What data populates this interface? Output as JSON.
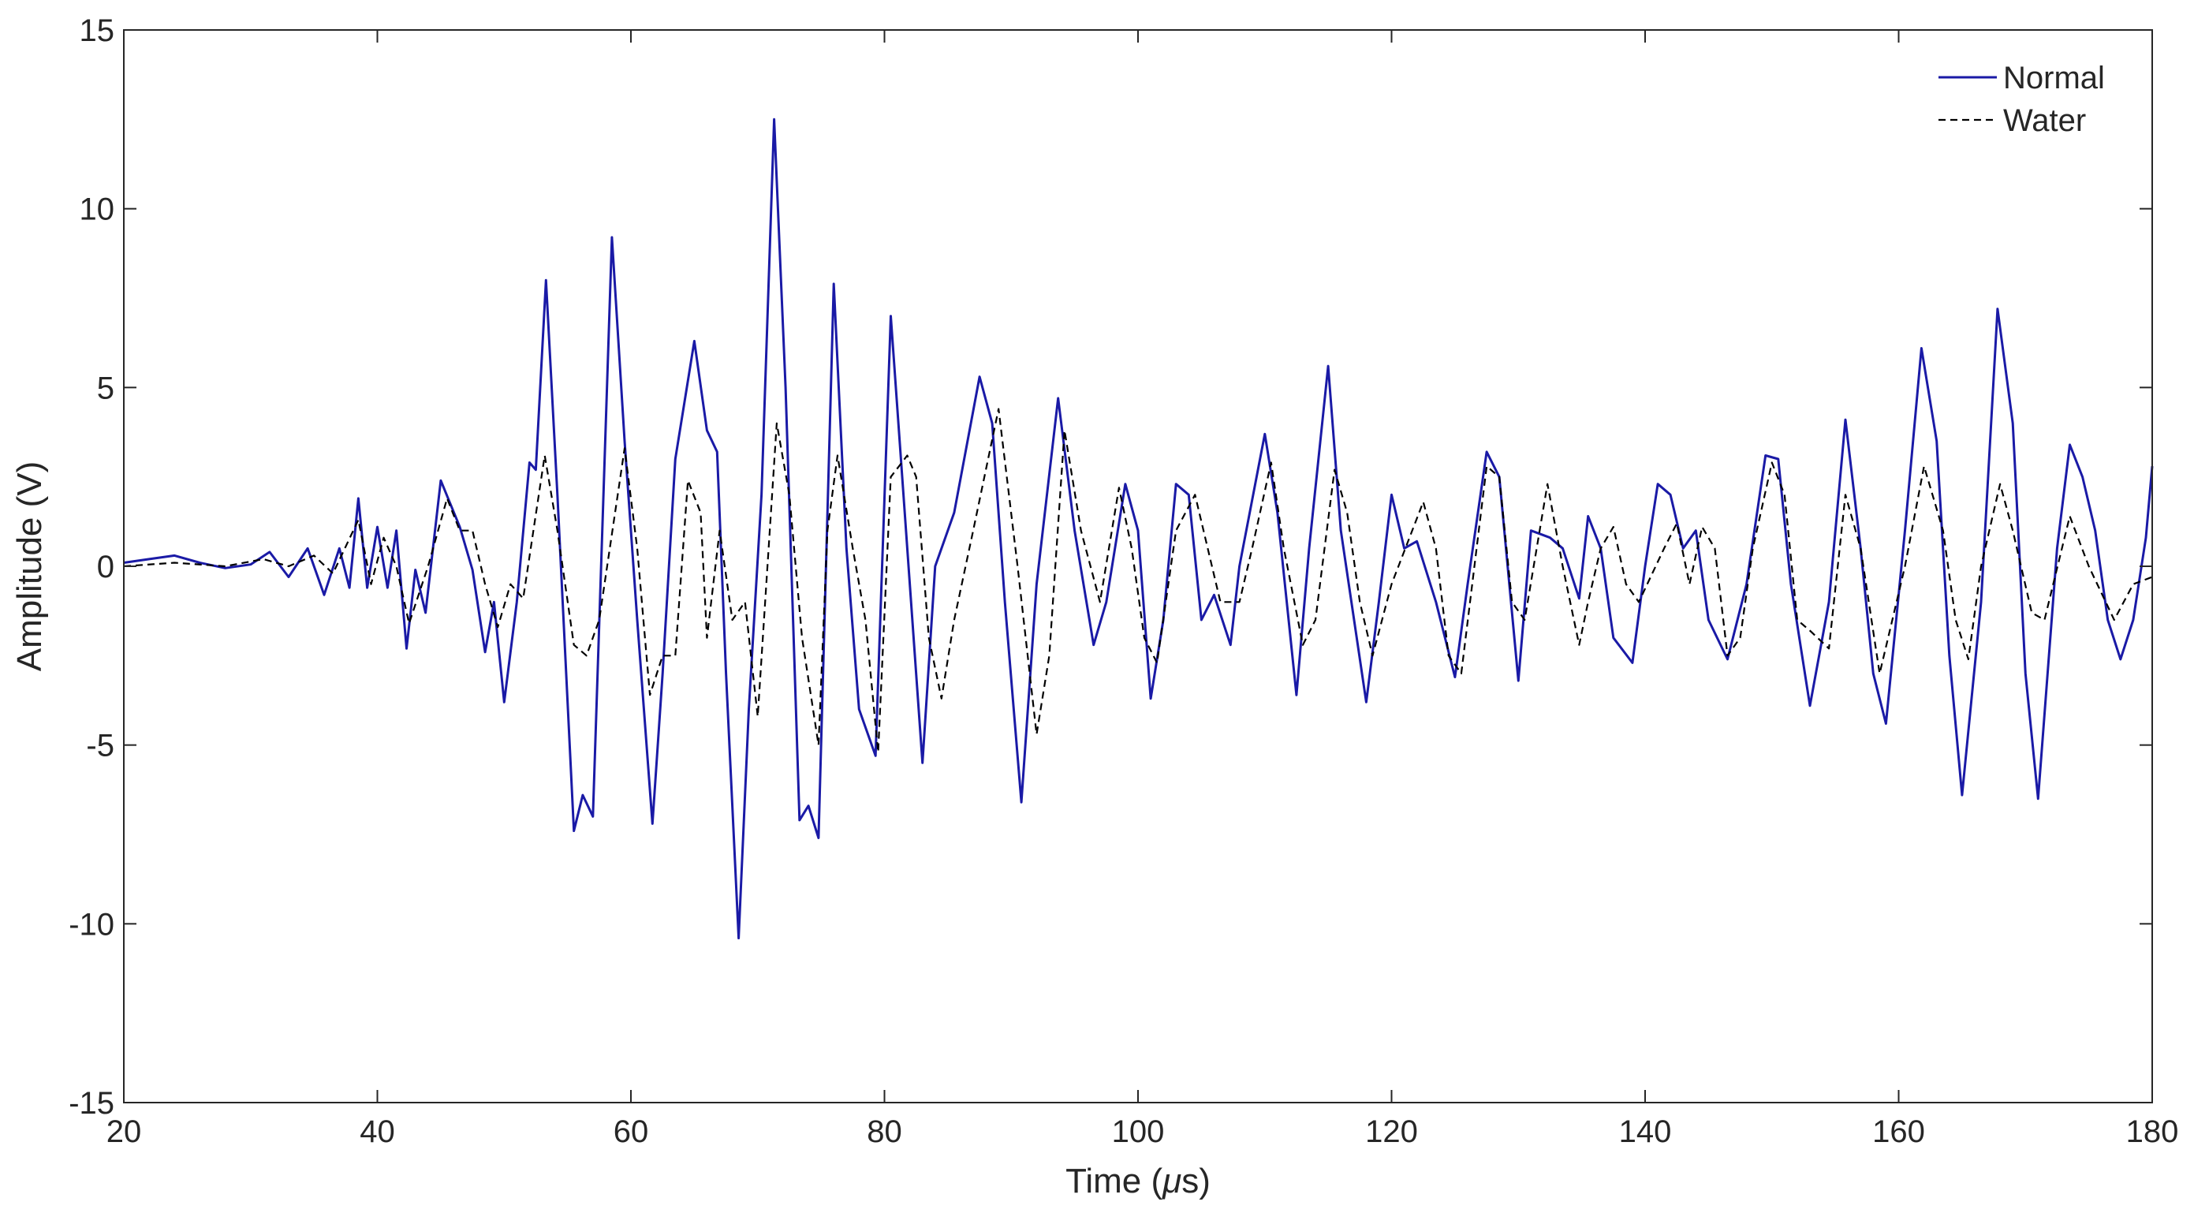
{
  "chart_data": {
    "type": "line",
    "title": "",
    "xlabel_prefix": "Time (",
    "xlabel_mu": "μ",
    "xlabel_suffix": "s)",
    "ylabel": "Amplitude (V)",
    "xlim": [
      20,
      180
    ],
    "ylim": [
      -15,
      15
    ],
    "xticks": [
      20,
      40,
      60,
      80,
      100,
      120,
      140,
      160,
      180
    ],
    "yticks": [
      15,
      10,
      5,
      0,
      -5,
      -10,
      -15
    ],
    "grid": false,
    "legend_position": "top-right",
    "series": [
      {
        "name": "Normal",
        "color": "#1a1aa6",
        "style": "solid",
        "points": [
          [
            20,
            0.1
          ],
          [
            22,
            0.2
          ],
          [
            24,
            0.3
          ],
          [
            26,
            0.1
          ],
          [
            28,
            -0.05
          ],
          [
            30,
            0.05
          ],
          [
            31.5,
            0.4
          ],
          [
            33,
            -0.3
          ],
          [
            34.5,
            0.5
          ],
          [
            35.8,
            -0.8
          ],
          [
            37,
            0.5
          ],
          [
            37.8,
            -0.6
          ],
          [
            38.5,
            1.9
          ],
          [
            39.2,
            -0.6
          ],
          [
            40,
            1.1
          ],
          [
            40.8,
            -0.6
          ],
          [
            41.5,
            1.0
          ],
          [
            42.3,
            -2.3
          ],
          [
            43,
            -0.1
          ],
          [
            43.8,
            -1.3
          ],
          [
            45,
            2.4
          ],
          [
            46.5,
            1.1
          ],
          [
            47.5,
            -0.1
          ],
          [
            48.5,
            -2.4
          ],
          [
            49.2,
            -1.0
          ],
          [
            50,
            -3.8
          ],
          [
            51,
            -1.0
          ],
          [
            52,
            2.9
          ],
          [
            52.5,
            2.7
          ],
          [
            53.3,
            8.0
          ],
          [
            54.2,
            2.0
          ],
          [
            55.5,
            -7.4
          ],
          [
            56.2,
            -6.4
          ],
          [
            57,
            -7.0
          ],
          [
            58.5,
            9.2
          ],
          [
            59.5,
            3.5
          ],
          [
            60.5,
            -1.5
          ],
          [
            61.7,
            -7.2
          ],
          [
            62.5,
            -3.0
          ],
          [
            63.5,
            3.0
          ],
          [
            65,
            6.3
          ],
          [
            66,
            3.8
          ],
          [
            66.8,
            3.2
          ],
          [
            67.5,
            -3.0
          ],
          [
            68.5,
            -10.4
          ],
          [
            69.3,
            -4.0
          ],
          [
            70.3,
            2.0
          ],
          [
            71.3,
            12.5
          ],
          [
            72.2,
            5.0
          ],
          [
            73.3,
            -7.1
          ],
          [
            74,
            -6.7
          ],
          [
            74.8,
            -7.6
          ],
          [
            76,
            7.9
          ],
          [
            77,
            0.5
          ],
          [
            78,
            -4.0
          ],
          [
            79.3,
            -5.3
          ],
          [
            80.5,
            7.0
          ],
          [
            81.5,
            2.0
          ],
          [
            83,
            -5.5
          ],
          [
            84,
            0.0
          ],
          [
            85.5,
            1.5
          ],
          [
            87.5,
            5.3
          ],
          [
            88.5,
            4.0
          ],
          [
            89.5,
            -1.0
          ],
          [
            90.8,
            -6.6
          ],
          [
            92,
            -0.5
          ],
          [
            93.7,
            4.7
          ],
          [
            95,
            1.0
          ],
          [
            96.5,
            -2.2
          ],
          [
            97.5,
            -1.0
          ],
          [
            99,
            2.3
          ],
          [
            100,
            1.0
          ],
          [
            101,
            -3.7
          ],
          [
            102,
            -1.5
          ],
          [
            103,
            2.3
          ],
          [
            104,
            2.0
          ],
          [
            105,
            -1.5
          ],
          [
            106,
            -0.8
          ],
          [
            107.3,
            -2.2
          ],
          [
            108,
            0.0
          ],
          [
            110,
            3.7
          ],
          [
            111,
            1.5
          ],
          [
            112.5,
            -3.6
          ],
          [
            113.5,
            0.5
          ],
          [
            115,
            5.6
          ],
          [
            116,
            1.0
          ],
          [
            118,
            -3.8
          ],
          [
            119,
            -1.0
          ],
          [
            120,
            2.0
          ],
          [
            121,
            0.5
          ],
          [
            122,
            0.7
          ],
          [
            123.5,
            -1.0
          ],
          [
            125,
            -3.1
          ],
          [
            126,
            -0.5
          ],
          [
            127.5,
            3.2
          ],
          [
            128.5,
            2.5
          ],
          [
            130,
            -3.2
          ],
          [
            131,
            1.0
          ],
          [
            132.5,
            0.8
          ],
          [
            133.5,
            0.5
          ],
          [
            134.8,
            -0.9
          ],
          [
            135.5,
            1.4
          ],
          [
            136.5,
            0.5
          ],
          [
            137.5,
            -2.0
          ],
          [
            139,
            -2.7
          ],
          [
            140,
            0.0
          ],
          [
            141,
            2.3
          ],
          [
            142,
            2.0
          ],
          [
            143,
            0.5
          ],
          [
            144,
            1.0
          ],
          [
            145,
            -1.5
          ],
          [
            146.5,
            -2.6
          ],
          [
            148,
            -0.5
          ],
          [
            149.5,
            3.1
          ],
          [
            150.5,
            3.0
          ],
          [
            151.5,
            -0.5
          ],
          [
            153,
            -3.9
          ],
          [
            154.5,
            -1.0
          ],
          [
            155.8,
            4.1
          ],
          [
            157,
            0.5
          ],
          [
            158,
            -3.0
          ],
          [
            159,
            -4.4
          ],
          [
            160.5,
            1.0
          ],
          [
            161.8,
            6.1
          ],
          [
            163,
            3.5
          ],
          [
            164,
            -2.5
          ],
          [
            165,
            -6.4
          ],
          [
            166.5,
            -1.0
          ],
          [
            167.8,
            7.2
          ],
          [
            169,
            4.0
          ],
          [
            170,
            -3.0
          ],
          [
            171,
            -6.5
          ],
          [
            172.5,
            0.5
          ],
          [
            173.5,
            3.4
          ],
          [
            174.5,
            2.5
          ],
          [
            175.5,
            1.0
          ],
          [
            176.5,
            -1.5
          ],
          [
            177.5,
            -2.6
          ],
          [
            178.5,
            -1.5
          ],
          [
            179.5,
            0.8
          ],
          [
            180,
            2.8
          ]
        ]
      },
      {
        "name": "Water",
        "color": "#000000",
        "style": "dashed",
        "points": [
          [
            20,
            0.0
          ],
          [
            24,
            0.1
          ],
          [
            28,
            0.0
          ],
          [
            31,
            0.2
          ],
          [
            33,
            0.0
          ],
          [
            35,
            0.3
          ],
          [
            36.5,
            -0.2
          ],
          [
            38.5,
            1.3
          ],
          [
            39.5,
            -0.5
          ],
          [
            40.5,
            0.8
          ],
          [
            41.5,
            0.0
          ],
          [
            42.5,
            -1.6
          ],
          [
            44,
            0.0
          ],
          [
            45.5,
            1.9
          ],
          [
            46.5,
            1.0
          ],
          [
            47.5,
            1.0
          ],
          [
            48.5,
            -0.5
          ],
          [
            49.5,
            -1.7
          ],
          [
            50.5,
            -0.5
          ],
          [
            51.5,
            -0.9
          ],
          [
            53.2,
            3.1
          ],
          [
            54.2,
            1.0
          ],
          [
            55.5,
            -2.2
          ],
          [
            56.5,
            -2.5
          ],
          [
            57.5,
            -1.5
          ],
          [
            59.5,
            3.3
          ],
          [
            60.5,
            0.5
          ],
          [
            61.5,
            -3.6
          ],
          [
            62.5,
            -2.5
          ],
          [
            63.5,
            -2.5
          ],
          [
            64.5,
            2.4
          ],
          [
            65.5,
            1.5
          ],
          [
            66,
            -2.0
          ],
          [
            67,
            1.0
          ],
          [
            68,
            -1.5
          ],
          [
            69,
            -1.0
          ],
          [
            70,
            -4.2
          ],
          [
            71.5,
            4.0
          ],
          [
            72.5,
            2.0
          ],
          [
            73.5,
            -2.0
          ],
          [
            74.8,
            -5.0
          ],
          [
            75.5,
            1.0
          ],
          [
            76.3,
            3.1
          ],
          [
            77.5,
            0.5
          ],
          [
            78.5,
            -1.5
          ],
          [
            79.5,
            -5.2
          ],
          [
            80.5,
            2.5
          ],
          [
            81.8,
            3.1
          ],
          [
            82.5,
            2.5
          ],
          [
            83.5,
            -2.0
          ],
          [
            84.5,
            -3.7
          ],
          [
            85.5,
            -1.5
          ],
          [
            87,
            1.0
          ],
          [
            89,
            4.4
          ],
          [
            90.5,
            0.0
          ],
          [
            92,
            -4.7
          ],
          [
            93,
            -2.5
          ],
          [
            94.2,
            3.8
          ],
          [
            95.5,
            1.0
          ],
          [
            97,
            -1.0
          ],
          [
            98.5,
            2.2
          ],
          [
            99.5,
            0.5
          ],
          [
            100.5,
            -2.0
          ],
          [
            101.5,
            -2.7
          ],
          [
            103,
            1.0
          ],
          [
            104.5,
            2.0
          ],
          [
            105.5,
            0.5
          ],
          [
            106.5,
            -1.0
          ],
          [
            108,
            -1.0
          ],
          [
            109,
            0.5
          ],
          [
            110.5,
            2.9
          ],
          [
            111.5,
            0.5
          ],
          [
            113,
            -2.2
          ],
          [
            114,
            -1.5
          ],
          [
            115.5,
            2.7
          ],
          [
            116.5,
            1.5
          ],
          [
            117.5,
            -1.0
          ],
          [
            118.5,
            -2.5
          ],
          [
            120,
            -0.5
          ],
          [
            122.5,
            1.8
          ],
          [
            123.5,
            0.5
          ],
          [
            124.5,
            -2.5
          ],
          [
            125.5,
            -3.0
          ],
          [
            127.5,
            2.8
          ],
          [
            128.5,
            2.5
          ],
          [
            129.5,
            -1.0
          ],
          [
            130.5,
            -1.5
          ],
          [
            132.3,
            2.3
          ],
          [
            133.5,
            0.0
          ],
          [
            134.8,
            -2.2
          ],
          [
            135.5,
            -1.0
          ],
          [
            136.5,
            0.5
          ],
          [
            137.5,
            1.1
          ],
          [
            138.5,
            -0.5
          ],
          [
            139.5,
            -1.0
          ],
          [
            141.5,
            0.5
          ],
          [
            142.5,
            1.2
          ],
          [
            143.5,
            -0.5
          ],
          [
            144.5,
            1.1
          ],
          [
            145.5,
            0.5
          ],
          [
            146.5,
            -2.5
          ],
          [
            147.5,
            -2.0
          ],
          [
            148.5,
            0.5
          ],
          [
            150,
            2.9
          ],
          [
            151,
            2.0
          ],
          [
            152,
            -1.5
          ],
          [
            153,
            -1.8
          ],
          [
            154.5,
            -2.3
          ],
          [
            155.8,
            2.0
          ],
          [
            157,
            0.5
          ],
          [
            158.5,
            -3.0
          ],
          [
            159.5,
            -1.5
          ],
          [
            160.5,
            0.0
          ],
          [
            162,
            2.8
          ],
          [
            163.5,
            1.0
          ],
          [
            164.5,
            -1.5
          ],
          [
            165.5,
            -2.6
          ],
          [
            166.5,
            0.0
          ],
          [
            168,
            2.3
          ],
          [
            169,
            1.0
          ],
          [
            170.5,
            -1.3
          ],
          [
            171.5,
            -1.5
          ],
          [
            173.5,
            1.4
          ],
          [
            175,
            0.0
          ],
          [
            177,
            -1.5
          ],
          [
            178.5,
            -0.5
          ],
          [
            180,
            -0.3
          ]
        ]
      }
    ]
  }
}
